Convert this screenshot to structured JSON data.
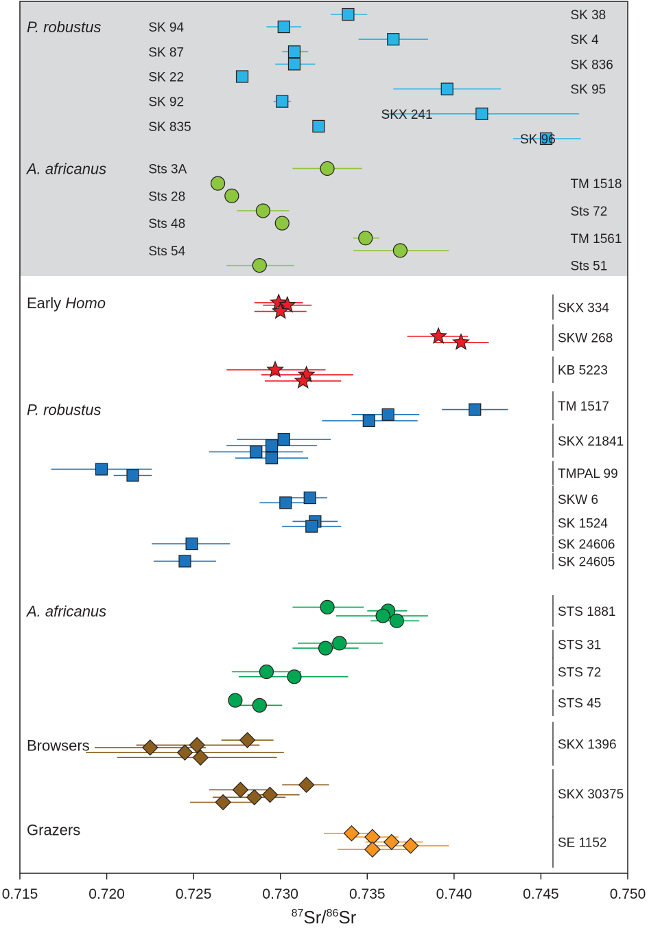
{
  "chart_data": {
    "type": "scatter",
    "xlabel_sup1": "87",
    "xlabel_a": "Sr/",
    "xlabel_sup2": "86",
    "xlabel_b": "Sr",
    "xlim": [
      0.715,
      0.75
    ],
    "xticks": [
      "0.715",
      "0.720",
      "0.725",
      "0.730",
      "0.735",
      "0.740",
      "0.745",
      "0.750"
    ],
    "colors": {
      "panel_bg": "#d9dadb",
      "light_blue": "#29b5e8",
      "light_green": "#8dc63f",
      "red": "#ed1c24",
      "blue": "#1c75bc",
      "green": "#00a651",
      "brown": "#8b5e1e",
      "orange": "#f7941d"
    },
    "group_labels": [
      {
        "text": "P. robustus",
        "italic": true,
        "y": 0.5
      },
      {
        "text": "A. africanus",
        "italic": true,
        "y": 6.2
      },
      {
        "text": "Early ",
        "text_italic": "Homo",
        "italic": false,
        "y": 11.6
      },
      {
        "text": "P. robustus",
        "italic": true,
        "y": 15.9
      },
      {
        "text": "A. africanus",
        "italic": true,
        "y": 24.0
      },
      {
        "text": "Browsers",
        "italic": false,
        "y": 29.4
      },
      {
        "text": "Grazers",
        "italic": false,
        "y": 32.8
      }
    ],
    "specimens_top": [
      {
        "label": "SK 38",
        "side": "right",
        "y": 0.0,
        "x": 0.7339,
        "err": [
          0.7329,
          0.735
        ],
        "shape": "square",
        "color": "light_blue",
        "label_x": 0.7467
      },
      {
        "label": "SK 94",
        "side": "left",
        "y": 0.5,
        "x": 0.7302,
        "err": [
          0.7292,
          0.7312
        ],
        "shape": "square",
        "color": "light_blue",
        "label_x": 0.7224
      },
      {
        "label": "SK 4",
        "side": "right",
        "y": 1.0,
        "x": 0.7365,
        "err": [
          0.7345,
          0.7385
        ],
        "shape": "square",
        "color": "light_blue",
        "label_x": 0.7467
      },
      {
        "label": "SK 87",
        "side": "left",
        "y": 1.5,
        "x": 0.7308,
        "err": [
          0.7301,
          0.7316
        ],
        "shape": "square",
        "color": "light_blue",
        "label_x": 0.7224
      },
      {
        "label": "SK 836",
        "side": "right",
        "y": 2.0,
        "x": 0.7308,
        "err": [
          0.7297,
          0.732
        ],
        "shape": "square",
        "color": "light_blue",
        "label_x": 0.7467
      },
      {
        "label": "SK 22",
        "side": "left",
        "y": 2.5,
        "x": 0.7278,
        "err": null,
        "shape": "square",
        "color": "light_blue",
        "label_x": 0.7224
      },
      {
        "label": "SK 95",
        "side": "right",
        "y": 3.0,
        "x": 0.7396,
        "err": [
          0.7365,
          0.7427
        ],
        "shape": "square",
        "color": "light_blue",
        "label_x": 0.7467
      },
      {
        "label": "SK 92",
        "side": "left",
        "y": 3.5,
        "x": 0.7301,
        "err": [
          0.7296,
          0.7306
        ],
        "shape": "square",
        "color": "light_blue",
        "label_x": 0.7224
      },
      {
        "label": "SKX 241",
        "side": "left",
        "y": 4.0,
        "x": 0.7416,
        "err": [
          0.736,
          0.7472
        ],
        "shape": "square",
        "color": "light_blue",
        "label_x": 0.7358
      },
      {
        "label": "SK 835",
        "side": "left",
        "y": 4.5,
        "x": 0.7322,
        "err": null,
        "shape": "square",
        "color": "light_blue",
        "label_x": 0.7224
      },
      {
        "label": "SK 96",
        "side": "left",
        "y": 5.0,
        "x": 0.7453,
        "err": [
          0.7434,
          0.7473
        ],
        "shape": "square",
        "color": "light_blue",
        "label_x": 0.7438
      },
      {
        "label": "Sts 3A",
        "side": "left",
        "y": 6.2,
        "x": 0.7327,
        "err": [
          0.7307,
          0.7347
        ],
        "shape": "circle",
        "color": "light_green",
        "label_x": 0.7224
      },
      {
        "label": "TM 1518",
        "side": "right",
        "y": 6.8,
        "x": 0.7264,
        "err": null,
        "shape": "circle",
        "color": "light_green",
        "label_x": 0.7467
      },
      {
        "label": "Sts 28",
        "side": "left",
        "y": 7.3,
        "x": 0.7272,
        "err": null,
        "shape": "circle",
        "color": "light_green",
        "label_x": 0.7224
      },
      {
        "label": "Sts 72",
        "side": "right",
        "y": 7.9,
        "x": 0.729,
        "err": [
          0.7275,
          0.7305
        ],
        "shape": "circle",
        "color": "light_green",
        "label_x": 0.7467
      },
      {
        "label": "Sts 48",
        "side": "left",
        "y": 8.4,
        "x": 0.7301,
        "err": null,
        "shape": "circle",
        "color": "light_green",
        "label_x": 0.7224
      },
      {
        "label": "TM 1561",
        "side": "right",
        "y": 9.0,
        "x": 0.7349,
        "err": [
          0.7342,
          0.7357
        ],
        "shape": "circle",
        "color": "light_green",
        "label_x": 0.7467
      },
      {
        "label": "Sts 54",
        "side": "left",
        "y": 9.5,
        "x": 0.7369,
        "err": [
          0.7342,
          0.7397
        ],
        "shape": "circle",
        "color": "light_green",
        "label_x": 0.7224
      },
      {
        "label": "Sts 51",
        "side": "right",
        "y": 10.1,
        "x": 0.7288,
        "err": [
          0.7269,
          0.7308
        ],
        "shape": "circle",
        "color": "light_green",
        "label_x": 0.7467
      }
    ],
    "specimens_bottom": [
      {
        "label": "SKX 334",
        "y": [
          11.6,
          11.95
        ],
        "points": [
          {
            "x": 0.7299,
            "y": 11.6,
            "err": [
              0.7285,
              0.7313
            ]
          },
          {
            "x": 0.7304,
            "y": 11.7,
            "err": [
              0.729,
              0.7318
            ]
          },
          {
            "x": 0.73,
            "y": 11.95,
            "err": [
              0.7285,
              0.7315
            ]
          }
        ],
        "shape": "star",
        "color": "red"
      },
      {
        "label": "SKW 268",
        "y": [
          12.8,
          13.2
        ],
        "points": [
          {
            "x": 0.7391,
            "y": 12.95,
            "err": [
              0.7373,
              0.7408
            ]
          },
          {
            "x": 0.7404,
            "y": 13.2,
            "err": [
              0.7388,
              0.742
            ]
          }
        ],
        "shape": "star",
        "color": "red"
      },
      {
        "label": "KB 5223",
        "y": [
          14.1,
          14.5
        ],
        "points": [
          {
            "x": 0.7297,
            "y": 14.3,
            "err": [
              0.7269,
              0.7326
            ]
          },
          {
            "x": 0.7315,
            "y": 14.5,
            "err": [
              0.7289,
              0.7342
            ]
          },
          {
            "x": 0.7313,
            "y": 14.75,
            "err": [
              0.7291,
              0.7335
            ]
          }
        ],
        "shape": "star",
        "color": "red"
      },
      {
        "label": "TM 1517",
        "y": [
          15.5,
          16.0
        ],
        "points": [
          {
            "x": 0.7412,
            "y": 15.9,
            "err": [
              0.7393,
              0.7431
            ]
          },
          {
            "x": 0.7362,
            "y": 16.1,
            "err": [
              0.7341,
              0.738
            ]
          },
          {
            "x": 0.7351,
            "y": 16.35,
            "err": [
              0.7324,
              0.7379
            ]
          }
        ],
        "shape": "square",
        "color": "blue"
      },
      {
        "label": "SKX 21841",
        "y": [
          16.8,
          17.5
        ],
        "points": [
          {
            "x": 0.7302,
            "y": 17.1,
            "err": [
              0.7275,
              0.7329
            ]
          },
          {
            "x": 0.7295,
            "y": 17.35,
            "err": [
              0.7269,
              0.7321
            ]
          },
          {
            "x": 0.7286,
            "y": 17.6,
            "err": [
              0.7259,
              0.7313
            ]
          },
          {
            "x": 0.7295,
            "y": 17.85,
            "err": [
              0.7274,
              0.7316
            ]
          }
        ],
        "shape": "square",
        "color": "blue"
      },
      {
        "label": "TMPAL 99",
        "y": [
          18.3,
          18.6
        ],
        "points": [
          {
            "x": 0.7197,
            "y": 18.3,
            "err": [
              0.7168,
              0.7226
            ]
          },
          {
            "x": 0.7215,
            "y": 18.55,
            "err": [
              0.7204,
              0.7226
            ]
          }
        ],
        "shape": "square",
        "color": "blue"
      },
      {
        "label": "SKW 6",
        "y": [
          19.3,
          19.7
        ],
        "points": [
          {
            "x": 0.7317,
            "y": 19.45,
            "err": [
              0.7306,
              0.7327
            ]
          },
          {
            "x": 0.7303,
            "y": 19.65,
            "err": [
              0.7288,
              0.7317
            ]
          }
        ],
        "shape": "square",
        "color": "blue"
      },
      {
        "label": "SK 1524",
        "y": [
          20.3,
          20.6
        ],
        "points": [
          {
            "x": 0.732,
            "y": 20.4,
            "err": [
              0.7307,
              0.7333
            ]
          },
          {
            "x": 0.7318,
            "y": 20.6,
            "err": [
              0.7301,
              0.7335
            ]
          }
        ],
        "shape": "square",
        "color": "blue"
      },
      {
        "label": "SK 24606",
        "y": [
          21.3,
          21.3
        ],
        "points": [
          {
            "x": 0.7249,
            "y": 21.3,
            "err": [
              0.7226,
              0.7271
            ]
          }
        ],
        "shape": "square",
        "color": "blue"
      },
      {
        "label": "SK 24605",
        "y": [
          22.0,
          22.0
        ],
        "points": [
          {
            "x": 0.7245,
            "y": 22.0,
            "err": [
              0.7227,
              0.7263
            ]
          }
        ],
        "shape": "square",
        "color": "blue"
      },
      {
        "label": "STS 1881",
        "y": [
          23.7,
          24.3
        ],
        "points": [
          {
            "x": 0.7327,
            "y": 23.85,
            "err": [
              0.7307,
              0.7348
            ]
          },
          {
            "x": 0.7362,
            "y": 24.0,
            "err": [
              0.735,
              0.7373
            ]
          },
          {
            "x": 0.7359,
            "y": 24.2,
            "err": [
              0.7332,
              0.7385
            ]
          },
          {
            "x": 0.7367,
            "y": 24.4,
            "err": [
              0.7352,
              0.738
            ]
          }
        ],
        "shape": "circle",
        "color": "green"
      },
      {
        "label": "STS 31",
        "y": [
          25.1,
          25.6
        ],
        "points": [
          {
            "x": 0.7334,
            "y": 25.3,
            "err": [
              0.731,
              0.7359
            ]
          },
          {
            "x": 0.7326,
            "y": 25.5,
            "err": [
              0.7307,
              0.7345
            ]
          }
        ],
        "shape": "circle",
        "color": "green"
      },
      {
        "label": "STS 72",
        "y": [
          26.2,
          26.7
        ],
        "points": [
          {
            "x": 0.7292,
            "y": 26.45,
            "err": [
              0.7272,
              0.7312
            ]
          },
          {
            "x": 0.7308,
            "y": 26.65,
            "err": [
              0.7276,
              0.7339
            ]
          }
        ],
        "shape": "circle",
        "color": "green"
      },
      {
        "label": "STS 45",
        "y": [
          27.5,
          27.9
        ],
        "points": [
          {
            "x": 0.7274,
            "y": 27.6,
            "err": null
          },
          {
            "x": 0.7288,
            "y": 27.8,
            "err": [
              0.7275,
              0.7301
            ]
          }
        ],
        "shape": "circle",
        "color": "green"
      },
      {
        "label": "SKX 1396",
        "y": [
          28.8,
          29.9
        ],
        "points": [
          {
            "x": 0.7281,
            "y": 29.2,
            "err": [
              0.7266,
              0.7296
            ]
          },
          {
            "x": 0.7252,
            "y": 29.4,
            "err": [
              0.7217,
              0.7288
            ]
          },
          {
            "x": 0.7225,
            "y": 29.5,
            "err": [
              0.7193,
              0.7257
            ]
          },
          {
            "x": 0.7245,
            "y": 29.7,
            "err": [
              0.7188,
              0.7302
            ]
          },
          {
            "x": 0.7254,
            "y": 29.9,
            "err": [
              0.7206,
              0.7298
            ]
          }
        ],
        "shape": "diamond",
        "color": "brown"
      },
      {
        "label": "SKX 30375",
        "y": [
          30.7,
          32.0
        ],
        "points": [
          {
            "x": 0.7315,
            "y": 31.0,
            "err": [
              0.7301,
              0.7328
            ]
          },
          {
            "x": 0.7277,
            "y": 31.2,
            "err": [
              0.7259,
              0.7295
            ]
          },
          {
            "x": 0.7294,
            "y": 31.4,
            "err": [
              0.7281,
              0.7311
            ]
          },
          {
            "x": 0.7285,
            "y": 31.5,
            "err": [
              0.7261,
              0.7303
            ]
          },
          {
            "x": 0.7267,
            "y": 31.7,
            "err": [
              0.7248,
              0.7286
            ]
          }
        ],
        "shape": "diamond",
        "color": "brown"
      },
      {
        "label": "SE 1152",
        "y": [
          32.6,
          34.0
        ],
        "points": [
          {
            "x": 0.7341,
            "y": 32.95,
            "err": [
              0.7325,
              0.7355
            ]
          },
          {
            "x": 0.7353,
            "y": 33.1,
            "err": [
              0.7338,
              0.7368
            ]
          },
          {
            "x": 0.7364,
            "y": 33.3,
            "err": [
              0.7349,
              0.7382
            ]
          },
          {
            "x": 0.7375,
            "y": 33.45,
            "err": [
              0.735,
              0.7397
            ]
          },
          {
            "x": 0.7353,
            "y": 33.6,
            "err": [
              0.7333,
              0.7374
            ]
          }
        ],
        "shape": "diamond",
        "color": "orange"
      }
    ]
  }
}
